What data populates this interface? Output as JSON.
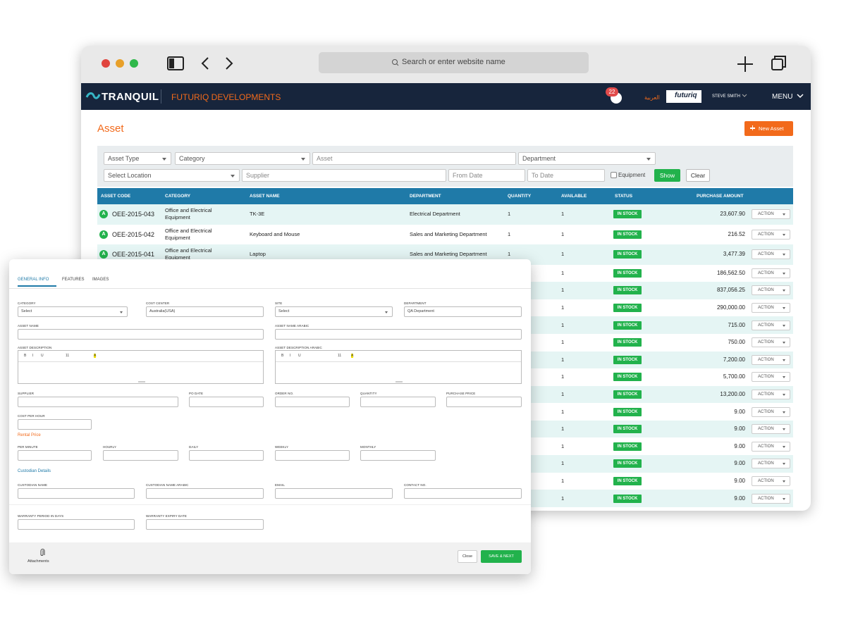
{
  "browser": {
    "address_bar": "Search or enter website name"
  },
  "header": {
    "logo": "TRANQUIL",
    "company": "FUTURIQ DEVELOPMENTS",
    "notifications": "22",
    "language": "العربية",
    "brand": "futuriq",
    "user": "STEVE SMITH",
    "menu": "MENU"
  },
  "page": {
    "title": "Asset",
    "new_button": "New Asset"
  },
  "filters": {
    "asset_type": "Asset Type",
    "category": "Category",
    "asset": "Asset",
    "department": "Department",
    "location": "Select Location",
    "supplier": "Supplier",
    "from_date": "From Date",
    "to_date": "To Date",
    "equipment": "Equipment",
    "show": "Show",
    "clear": "Clear"
  },
  "table": {
    "columns": [
      "ASSET CODE",
      "CATEGORY",
      "ASSET NAME",
      "DEPARTMENT",
      "QUANTITY",
      "AVAILABLE",
      "STATUS",
      "PURCHASE AMOUNT"
    ],
    "rows": [
      {
        "badge": "A",
        "code": "OEE-2015-043",
        "category": "Office and Electrical Equipment",
        "name": "TK-3E",
        "department": "Electrical Department",
        "quantity": "1",
        "available": "1",
        "status": "IN STOCK",
        "amount": "23,607.90",
        "action": "ACTION"
      },
      {
        "badge": "A",
        "code": "OEE-2015-042",
        "category": "Office and Electrical Equipment",
        "name": "Keyboard and Mouse",
        "department": "Sales and Marketing Department",
        "quantity": "1",
        "available": "1",
        "status": "IN STOCK",
        "amount": "216.52",
        "action": "ACTION"
      },
      {
        "badge": "A",
        "code": "OEE-2015-041",
        "category": "Office and Electrical Equipment",
        "name": "Laptop",
        "department": "Sales and Marketing Department",
        "quantity": "1",
        "available": "1",
        "status": "IN STOCK",
        "amount": "3,477.39",
        "action": "ACTION"
      },
      {
        "available": "1",
        "status": "IN STOCK",
        "amount": "186,562.50",
        "action": "ACTION"
      },
      {
        "available": "1",
        "status": "IN STOCK",
        "amount": "837,056.25",
        "action": "ACTION"
      },
      {
        "available": "1",
        "status": "IN STOCK",
        "amount": "290,000.00",
        "action": "ACTION"
      },
      {
        "available": "1",
        "status": "IN STOCK",
        "amount": "715.00",
        "action": "ACTION"
      },
      {
        "available": "1",
        "status": "IN STOCK",
        "amount": "750.00",
        "action": "ACTION"
      },
      {
        "available": "1",
        "status": "IN STOCK",
        "amount": "7,200.00",
        "action": "ACTION"
      },
      {
        "available": "1",
        "status": "IN STOCK",
        "amount": "5,700.00",
        "action": "ACTION"
      },
      {
        "available": "1",
        "status": "IN STOCK",
        "amount": "13,200.00",
        "action": "ACTION"
      },
      {
        "available": "1",
        "status": "IN STOCK",
        "amount": "9.00",
        "action": "ACTION"
      },
      {
        "available": "1",
        "status": "IN STOCK",
        "amount": "9.00",
        "action": "ACTION"
      },
      {
        "available": "1",
        "status": "IN STOCK",
        "amount": "9.00",
        "action": "ACTION"
      },
      {
        "available": "1",
        "status": "IN STOCK",
        "amount": "9.00",
        "action": "ACTION"
      },
      {
        "available": "1",
        "status": "IN STOCK",
        "amount": "9.00",
        "action": "ACTION"
      },
      {
        "available": "1",
        "status": "IN STOCK",
        "amount": "9.00",
        "action": "ACTION"
      }
    ]
  },
  "form": {
    "tabs": [
      "GENERAL INFO",
      "FEATURES",
      "IMAGES"
    ],
    "fields": [
      {
        "label": "CATEGORY",
        "value": "Select"
      },
      {
        "label": "COST CENTER",
        "value": "Australia(USA)"
      },
      {
        "label": "SITE",
        "value": "Select"
      },
      {
        "label": "DEPARTMENT",
        "value": "QA Department"
      },
      {
        "label": "ASSET NAME"
      },
      {
        "label": "ASSET NAME ARABIC"
      },
      {
        "label": "ASSET DESCRIPTION"
      },
      {
        "label": "ASSET DESCRIPTION ARABIC"
      },
      {
        "label": "SUPPLIER"
      },
      {
        "label": "PO DATE"
      },
      {
        "label": "ORDER NO."
      },
      {
        "label": "QUANTITY"
      },
      {
        "label": "PURCHASE PRICE"
      },
      {
        "label": "COST PER HOUR"
      },
      {
        "label": "PER MINUTE"
      },
      {
        "label": "HOURLY"
      },
      {
        "label": "DAILY"
      },
      {
        "label": "WEEKLY"
      },
      {
        "label": "MONTHLY"
      },
      {
        "label": "CUSTODIAN NAME"
      },
      {
        "label": "CUSTODIAN NAME ARABIC"
      },
      {
        "label": "EMAIL"
      },
      {
        "label": "CONTACT NO."
      },
      {
        "label": "WARRANTY PERIOD IN DAYS"
      },
      {
        "label": "WARRANTY EXPIRY DATE"
      }
    ],
    "editor_toolbar": [
      "B",
      "I",
      "U",
      "11",
      "A"
    ],
    "rental_heading": "Rental Price",
    "custodian_heading": "Custodian Details",
    "attachments": "Attachments",
    "close": "Close",
    "save": "SAVE & NEXT"
  }
}
